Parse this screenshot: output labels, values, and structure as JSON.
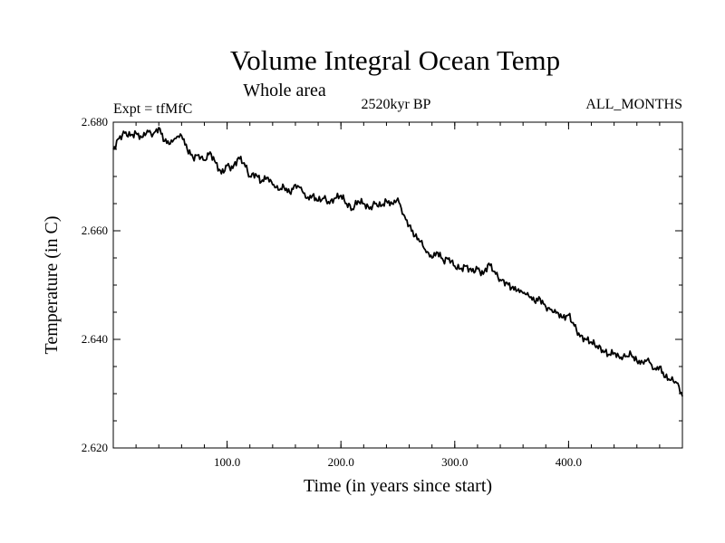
{
  "chart_data": {
    "type": "line",
    "title": "Volume Integral Ocean Temp",
    "subtitle": "Whole area",
    "experiment": "Expt = tfMfC",
    "period": "2520kyr BP",
    "months": "ALL_MONTHS",
    "xlabel": "Time (in years since start)",
    "ylabel": "Temperature (in C)",
    "xlim": [
      0,
      500
    ],
    "ylim": [
      2.62,
      2.68
    ],
    "x_ticks": [
      {
        "value": 100,
        "label": "100.0"
      },
      {
        "value": 200,
        "label": "200.0"
      },
      {
        "value": 300,
        "label": "300.0"
      },
      {
        "value": 400,
        "label": "400.0"
      }
    ],
    "y_ticks": [
      {
        "value": 2.62,
        "label": "2.620"
      },
      {
        "value": 2.64,
        "label": "2.640"
      },
      {
        "value": 2.66,
        "label": "2.660"
      },
      {
        "value": 2.68,
        "label": "2.680"
      }
    ],
    "x_minor_step": 20,
    "y_minor_step": 0.005,
    "series": [
      {
        "name": "Volume Integral Ocean Temp",
        "color": "#000000",
        "x": [
          0,
          5,
          10,
          15,
          20,
          25,
          30,
          35,
          40,
          45,
          50,
          55,
          60,
          65,
          70,
          75,
          80,
          85,
          90,
          95,
          100,
          105,
          110,
          115,
          120,
          125,
          130,
          135,
          140,
          145,
          150,
          155,
          160,
          165,
          170,
          175,
          180,
          185,
          190,
          195,
          200,
          205,
          210,
          215,
          220,
          225,
          230,
          235,
          240,
          245,
          250,
          255,
          260,
          265,
          270,
          275,
          280,
          285,
          290,
          295,
          300,
          305,
          310,
          315,
          320,
          325,
          330,
          335,
          340,
          345,
          350,
          355,
          360,
          365,
          370,
          375,
          380,
          385,
          390,
          395,
          400,
          405,
          410,
          415,
          420,
          425,
          430,
          435,
          440,
          445,
          450,
          455,
          460,
          465,
          470,
          475,
          480,
          485,
          490,
          495,
          500
        ],
        "y": [
          2.675,
          2.677,
          2.678,
          2.6775,
          2.678,
          2.6772,
          2.6785,
          2.6778,
          2.679,
          2.6765,
          2.676,
          2.677,
          2.6775,
          2.675,
          2.6735,
          2.674,
          2.673,
          2.6745,
          2.6725,
          2.6705,
          2.672,
          2.6715,
          2.6735,
          2.6725,
          2.67,
          2.6705,
          2.669,
          2.6698,
          2.6685,
          2.6675,
          2.668,
          2.667,
          2.6685,
          2.668,
          2.666,
          2.6665,
          2.6655,
          2.666,
          2.665,
          2.666,
          2.6665,
          2.665,
          2.664,
          2.6655,
          2.665,
          2.664,
          2.665,
          2.6645,
          2.6655,
          2.665,
          2.666,
          2.663,
          2.661,
          2.659,
          2.658,
          2.656,
          2.655,
          2.656,
          2.6545,
          2.655,
          2.6535,
          2.653,
          2.6535,
          2.6525,
          2.653,
          2.652,
          2.654,
          2.6525,
          2.651,
          2.6505,
          2.6495,
          2.649,
          2.6485,
          2.648,
          2.647,
          2.6475,
          2.646,
          2.6455,
          2.645,
          2.644,
          2.6445,
          2.6425,
          2.6405,
          2.64,
          2.6395,
          2.6388,
          2.638,
          2.6372,
          2.6375,
          2.6365,
          2.6368,
          2.6372,
          2.636,
          2.6358,
          2.6365,
          2.6345,
          2.635,
          2.633,
          2.6325,
          2.632,
          2.6295
        ]
      }
    ]
  }
}
